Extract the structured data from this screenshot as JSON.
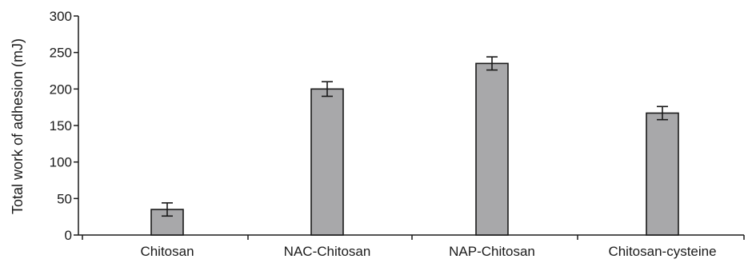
{
  "chart_data": {
    "type": "bar",
    "title": "",
    "xlabel": "",
    "ylabel": "Total work of adhesion (mJ)",
    "categories": [
      "Chitosan",
      "NAC-Chitosan",
      "NAP-Chitosan",
      "Chitosan-cysteine"
    ],
    "values": [
      35,
      200,
      235,
      167
    ],
    "errors": [
      9,
      10,
      9,
      9
    ],
    "ylim": [
      0,
      300
    ],
    "yticks": [
      0,
      50,
      100,
      150,
      200,
      250,
      300
    ],
    "grid": false,
    "bar_color": "#a8a8aa"
  }
}
